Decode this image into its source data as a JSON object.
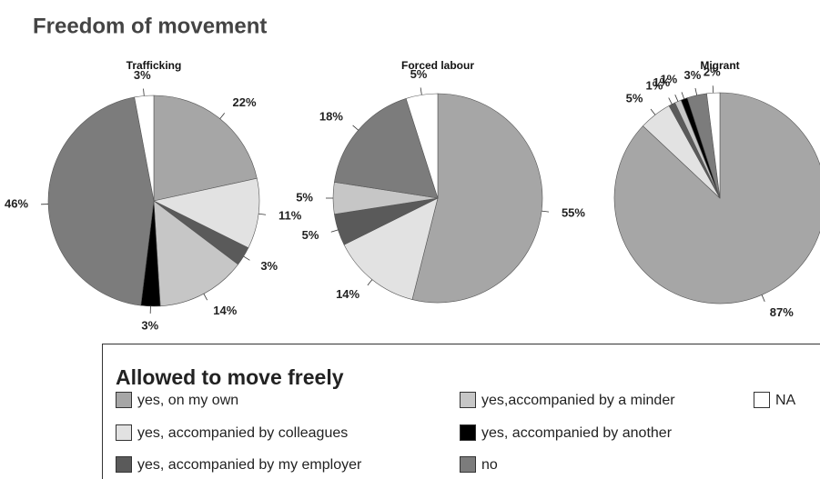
{
  "title": "Freedom of movement",
  "legend": {
    "title": "Allowed to move freely",
    "categories": [
      "yes, on my own",
      "yes, accompanied by colleagues",
      "yes, accompanied by my employer",
      "yes,accompanied by a minder",
      "yes, accompanied by another",
      "no",
      "NA"
    ],
    "colors": [
      "#a6a6a6",
      "#e2e2e2",
      "#5a5a5a",
      "#c6c6c6",
      "#000000",
      "#7c7c7c",
      "#ffffff"
    ]
  },
  "chart_data": [
    {
      "type": "pie",
      "title": "Trafficking",
      "values": [
        22,
        11,
        3,
        14,
        3,
        46,
        3
      ],
      "value_labels": [
        "22%",
        "11%",
        "3%",
        "14%",
        "3%",
        "46%",
        "3%"
      ]
    },
    {
      "type": "pie",
      "title": "Forced labour",
      "values": [
        55,
        14,
        5,
        5,
        null,
        18,
        5
      ],
      "value_labels": [
        "55%",
        "14%",
        "5%",
        "5%",
        null,
        "18%",
        "5%"
      ]
    },
    {
      "type": "pie",
      "title": "Migrant",
      "values": [
        87,
        5,
        1,
        1,
        1,
        3,
        2
      ],
      "value_labels": [
        "87%",
        "5%",
        "1%",
        "1%",
        "1%",
        "3%",
        "2%"
      ]
    }
  ]
}
